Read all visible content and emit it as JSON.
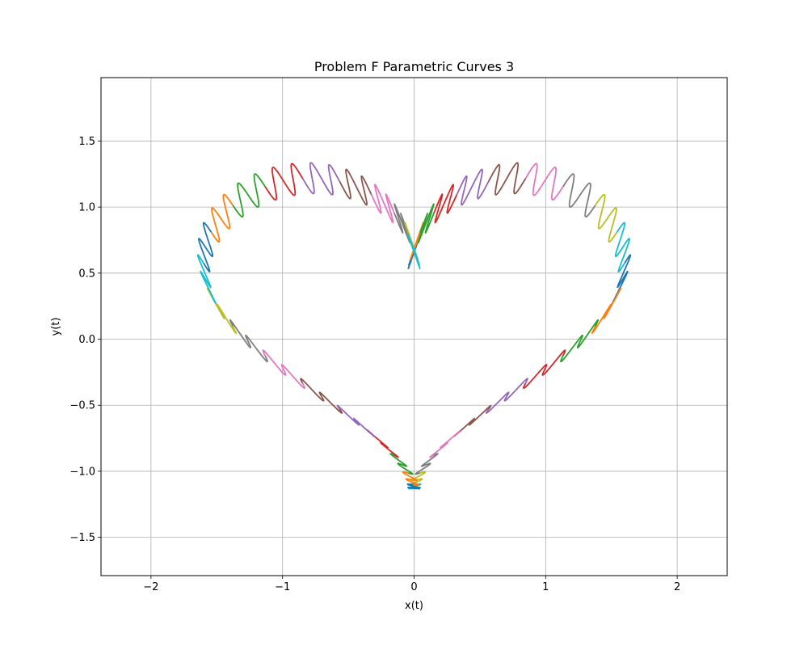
{
  "chart_data": {
    "type": "line",
    "title": "Problem F Parametric Curves 3",
    "xlabel": "x(t)",
    "ylabel": "y(t)",
    "xlim": [
      -2.38,
      2.38
    ],
    "ylim": [
      -1.79,
      1.98
    ],
    "xticks": [
      -2,
      -1,
      0,
      1,
      2
    ],
    "yticks": [
      -1.5,
      -1.0,
      -0.5,
      0.0,
      0.5,
      1.0,
      1.5
    ],
    "xtick_labels": [
      "−2",
      "−1",
      "0",
      "1",
      "2"
    ],
    "ytick_labels": [
      "−1.5",
      "−1.0",
      "−0.5",
      "0.0",
      "0.5",
      "1.0",
      "1.5"
    ],
    "grid": true,
    "legend": "none",
    "series_count": 40,
    "base_curve": {
      "description": "heart",
      "x_amplitude": 1.6,
      "y_offset": 0.25,
      "y_amplitude": 1.3
    },
    "loop_amplitude": 0.13,
    "loops_per_curve": 2,
    "colors": [
      "#1f77b4",
      "#ff7f0e",
      "#2ca02c",
      "#d62728",
      "#9467bd",
      "#8c564b",
      "#e377c2",
      "#7f7f7f",
      "#bcbd22",
      "#17becf"
    ]
  }
}
